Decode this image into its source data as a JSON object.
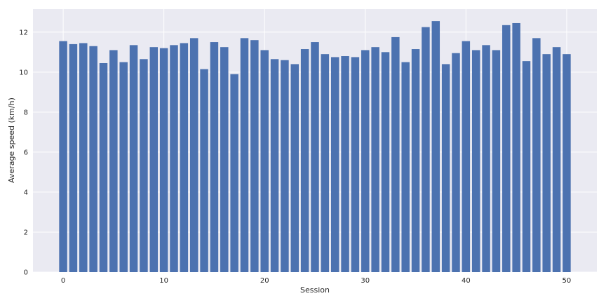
{
  "chart_data": {
    "type": "bar",
    "title": "",
    "xlabel": "Session",
    "ylabel": "Average speed (km/h)",
    "x": [
      0,
      1,
      2,
      3,
      4,
      5,
      6,
      7,
      8,
      9,
      10,
      11,
      12,
      13,
      14,
      15,
      16,
      17,
      18,
      19,
      20,
      21,
      22,
      23,
      24,
      25,
      26,
      27,
      28,
      29,
      30,
      31,
      32,
      33,
      34,
      35,
      36,
      37,
      38,
      39,
      40,
      41,
      42,
      43,
      44,
      45,
      46,
      47,
      48,
      49,
      50
    ],
    "values": [
      11.55,
      11.4,
      11.45,
      11.3,
      10.45,
      11.1,
      10.5,
      11.35,
      10.65,
      11.25,
      11.2,
      11.35,
      11.45,
      11.7,
      10.15,
      11.5,
      11.25,
      9.9,
      11.7,
      11.6,
      11.1,
      10.65,
      10.6,
      10.4,
      11.15,
      11.5,
      10.9,
      10.75,
      10.8,
      10.75,
      11.1,
      11.25,
      11.0,
      11.75,
      10.5,
      11.15,
      12.25,
      12.55,
      10.4,
      10.95,
      11.55,
      11.1,
      11.35,
      11.1,
      12.35,
      12.45,
      10.55,
      11.7,
      10.9,
      11.25,
      10.9
    ],
    "xlim": [
      -3,
      53
    ],
    "ylim": [
      0,
      13.15
    ],
    "xticks": [
      0,
      10,
      20,
      30,
      40,
      50
    ],
    "yticks": [
      0,
      2,
      4,
      6,
      8,
      10,
      12
    ],
    "grid": true,
    "colors": {
      "bar": "#4c72b0",
      "plot_background": "#eaeaf2",
      "grid": "#ffffff"
    }
  }
}
